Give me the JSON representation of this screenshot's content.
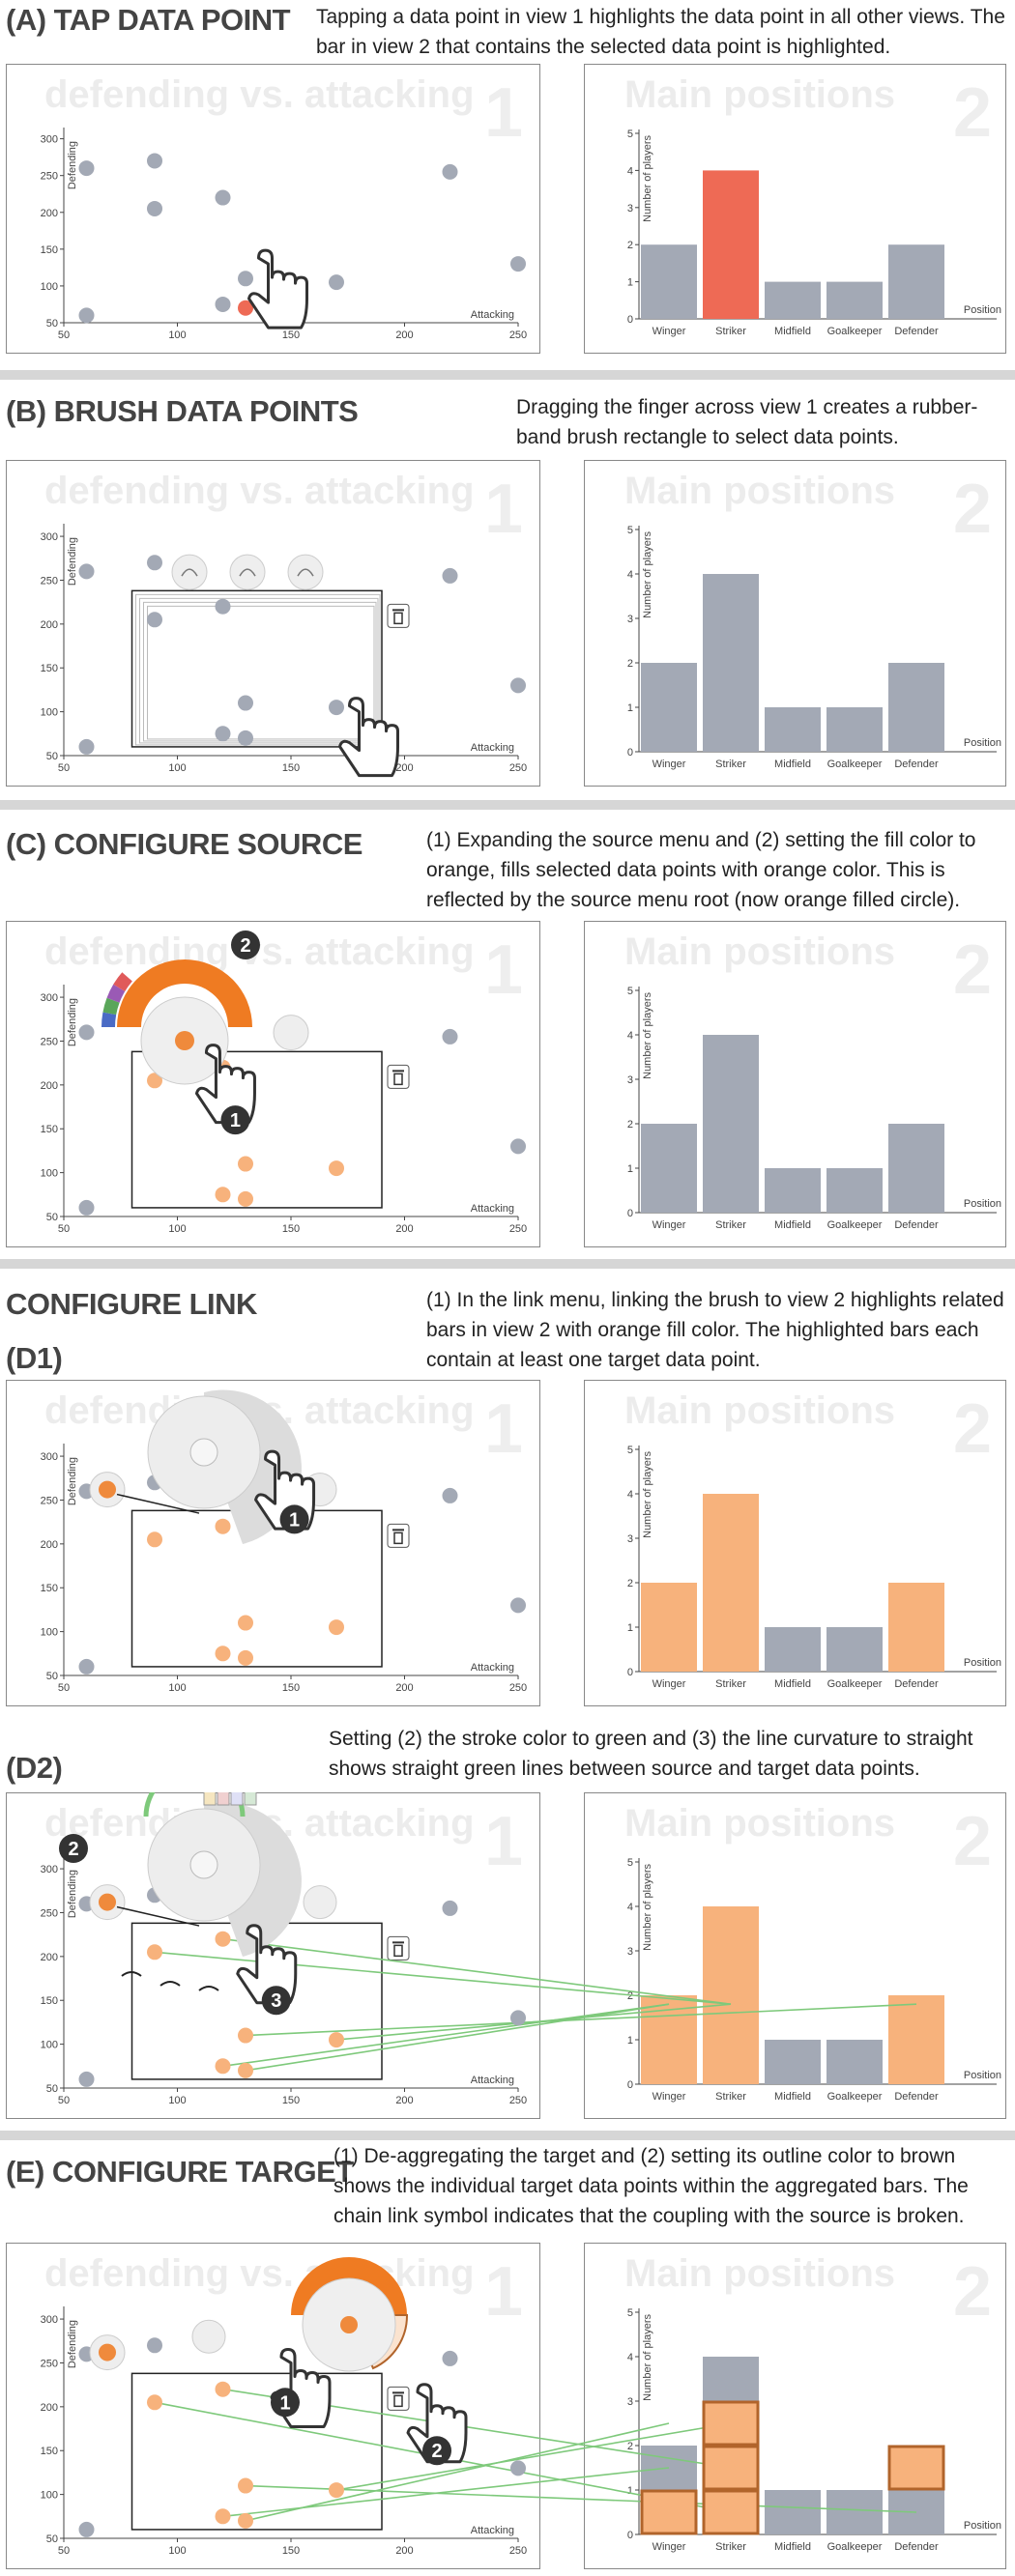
{
  "sections": [
    {
      "id": "A",
      "title": "(A) TAP DATA POINT",
      "subtitle": "",
      "description": "Tapping a data point in view 1 highlights the data point in all other views. The bar in view 2 that contains the selected data point is highlighted."
    },
    {
      "id": "B",
      "title": "(B) BRUSH DATA POINTS",
      "subtitle": "",
      "description": "Dragging the finger across view 1 creates a rubber-band brush rectangle to select data points."
    },
    {
      "id": "C",
      "title": "(C) CONFIGURE SOURCE",
      "subtitle": "",
      "description": "(1) Expanding the source menu and (2) setting the fill color to orange, fills selected data points with orange color. This is reflected by the source menu root (now orange filled circle)."
    },
    {
      "id": "D1",
      "title": "CONFIGURE LINK",
      "subtitle": "(D1)",
      "description": "(1) In the link menu, linking the brush to view 2 highlights related bars in view 2 with orange fill color. The highlighted bars each contain at least one target data point."
    },
    {
      "id": "D2",
      "title": "",
      "subtitle": "(D2)",
      "description": "Setting (2) the stroke color to green and (3) the line curvature to straight shows straight green lines between source and target data points."
    },
    {
      "id": "E",
      "title": "(E) CONFIGURE TARGET",
      "subtitle": "",
      "description": "(1) De-aggregating the target and (2) setting its outline color to brown shows the individual target data points within the aggregated bars. The chain link symbol indicates that the coupling with the source is broken."
    }
  ],
  "views": {
    "scatter": {
      "title": "defending vs. attacking",
      "number": "1",
      "xlabel": "Attacking",
      "ylabel": "Defending",
      "xticks": [
        "50",
        "100",
        "150",
        "200",
        "250"
      ],
      "yticks": [
        "50",
        "100",
        "150",
        "200",
        "250",
        "300"
      ]
    },
    "bar": {
      "title": "Main positions",
      "number": "2",
      "xlabel": "Position",
      "ylabel": "Number of players",
      "yticks": [
        "0",
        "1",
        "2",
        "3",
        "4",
        "5"
      ]
    }
  },
  "callouts": [
    "1",
    "2",
    "3"
  ],
  "colors": {
    "gray": "#a3a9b5",
    "orange": "#ef8a3c",
    "orange_light": "#f7b27c",
    "red": "#ee6a55",
    "green": "#7ec97b",
    "brown": "#b1642b",
    "divider": "#d6d6d6"
  },
  "chart_data": [
    {
      "type": "scatter",
      "x": [
        60,
        60,
        90,
        90,
        120,
        130,
        130,
        120,
        170,
        220,
        250
      ],
      "y": [
        60,
        260,
        205,
        270,
        220,
        70,
        110,
        75,
        105,
        255,
        130
      ],
      "xlim": [
        50,
        250
      ],
      "ylim": [
        50,
        310
      ],
      "xlabel": "Attacking",
      "ylabel": "Defending",
      "title": "defending vs. attacking"
    },
    {
      "type": "bar",
      "categories": [
        "Winger",
        "Striker",
        "Midfield",
        "Goalkeeper",
        "Defender"
      ],
      "values": [
        2,
        4,
        1,
        1,
        2
      ],
      "ylim": [
        0,
        5
      ],
      "xlabel": "Position",
      "ylabel": "Number of players",
      "title": "Main positions"
    }
  ]
}
